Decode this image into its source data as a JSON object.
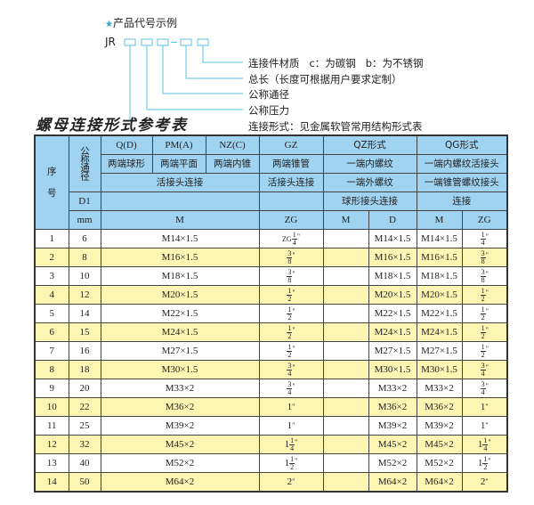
{
  "example": {
    "title": "产品代号示例",
    "icon": "star-icon",
    "code_prefix": "JR",
    "labels": [
      "连接件材质   c：为碳钢   b：为不锈钢",
      "总长（长度可根据用户要求定制）",
      "公称通径",
      "公称压力",
      "连接形式：见金属软管常用结构形式表"
    ],
    "line_color": "#5bc3e0"
  },
  "table_title": "螺母连接形式参考表",
  "colors": {
    "header_bg": "#9fd3f1",
    "alt_row_bg": "#fdf6b2"
  },
  "header": {
    "seq": "序\n\n号",
    "nominal_dia": "公称通径",
    "row1": [
      "Q(D)",
      "PM(A)",
      "NZ(C)",
      "GZ",
      "QZ形式",
      "QG形式"
    ],
    "row2": [
      "两端球形",
      "两端平面",
      "两端内锥",
      "两端锥管",
      "一端内螺纹",
      "一端内螺纹活接头"
    ],
    "row3": [
      "活接头连接",
      "活接头连接",
      "一端外螺纹",
      "一端锥管螺纹接头"
    ],
    "row4": [
      "D1",
      "",
      "",
      "球形接头连接",
      "连接"
    ],
    "row5": [
      "mm",
      "M",
      "ZG",
      "M",
      "D",
      "M",
      "ZG"
    ]
  },
  "rows": [
    {
      "no": "1",
      "dn": "6",
      "m": "M14×1.5",
      "zg": {
        "pre": "ZG",
        "whole": "",
        "n": "1",
        "d": "4"
      },
      "qz_m": "",
      "qz_d": "M14×1.5",
      "qg_m": "M14×1.5",
      "qg_zg": {
        "whole": "",
        "n": "1",
        "d": "4"
      }
    },
    {
      "no": "2",
      "dn": "8",
      "m": "M16×1.5",
      "zg": {
        "pre": "",
        "whole": "",
        "n": "3",
        "d": "8"
      },
      "qz_m": "",
      "qz_d": "M16×1.5",
      "qg_m": "M16×1.5",
      "qg_zg": {
        "whole": "",
        "n": "3",
        "d": "8"
      }
    },
    {
      "no": "3",
      "dn": "10",
      "m": "M18×1.5",
      "zg": {
        "pre": "",
        "whole": "",
        "n": "3",
        "d": "8"
      },
      "qz_m": "",
      "qz_d": "M18×1.5",
      "qg_m": "M18×1.5",
      "qg_zg": {
        "whole": "",
        "n": "3",
        "d": "8"
      }
    },
    {
      "no": "4",
      "dn": "12",
      "m": "M20×1.5",
      "zg": {
        "pre": "",
        "whole": "",
        "n": "1",
        "d": "2"
      },
      "qz_m": "",
      "qz_d": "M20×1.5",
      "qg_m": "M20×1.5",
      "qg_zg": {
        "whole": "",
        "n": "1",
        "d": "2"
      }
    },
    {
      "no": "5",
      "dn": "14",
      "m": "M22×1.5",
      "zg": {
        "pre": "",
        "whole": "",
        "n": "1",
        "d": "2"
      },
      "qz_m": "",
      "qz_d": "M22×1.5",
      "qg_m": "M22×1.5",
      "qg_zg": {
        "whole": "",
        "n": "1",
        "d": "2"
      }
    },
    {
      "no": "6",
      "dn": "15",
      "m": "M24×1.5",
      "zg": {
        "pre": "",
        "whole": "",
        "n": "1",
        "d": "2"
      },
      "qz_m": "",
      "qz_d": "M24×1.5",
      "qg_m": "M24×1.5",
      "qg_zg": {
        "whole": "",
        "n": "1",
        "d": "2"
      }
    },
    {
      "no": "7",
      "dn": "16",
      "m": "M27×1.5",
      "zg": {
        "pre": "",
        "whole": "",
        "n": "1",
        "d": "2"
      },
      "qz_m": "",
      "qz_d": "M27×1.5",
      "qg_m": "M27×1.5",
      "qg_zg": {
        "whole": "",
        "n": "1",
        "d": "2"
      }
    },
    {
      "no": "8",
      "dn": "18",
      "m": "M30×1.5",
      "zg": {
        "pre": "",
        "whole": "",
        "n": "3",
        "d": "4"
      },
      "qz_m": "",
      "qz_d": "M30×1.5",
      "qg_m": "M30×1.5",
      "qg_zg": {
        "whole": "",
        "n": "3",
        "d": "4"
      }
    },
    {
      "no": "9",
      "dn": "20",
      "m": "M33×2",
      "zg": {
        "pre": "",
        "whole": "",
        "n": "3",
        "d": "4"
      },
      "qz_m": "",
      "qz_d": "M33×2",
      "qg_m": "M33×2",
      "qg_zg": {
        "whole": "",
        "n": "3",
        "d": "4"
      }
    },
    {
      "no": "10",
      "dn": "22",
      "m": "M36×2",
      "zg": {
        "pre": "",
        "whole": "1",
        "n": "",
        "d": ""
      },
      "qz_m": "",
      "qz_d": "M36×2",
      "qg_m": "M36×2",
      "qg_zg": {
        "whole": "1",
        "n": "",
        "d": ""
      }
    },
    {
      "no": "11",
      "dn": "25",
      "m": "M39×2",
      "zg": {
        "pre": "",
        "whole": "1",
        "n": "",
        "d": ""
      },
      "qz_m": "",
      "qz_d": "M39×2",
      "qg_m": "M39×2",
      "qg_zg": {
        "whole": "1",
        "n": "",
        "d": ""
      }
    },
    {
      "no": "12",
      "dn": "32",
      "m": "M45×2",
      "zg": {
        "pre": "",
        "whole": "1",
        "n": "1",
        "d": "4"
      },
      "qz_m": "",
      "qz_d": "M45×2",
      "qg_m": "M45×2",
      "qg_zg": {
        "whole": "1",
        "n": "1",
        "d": "4"
      }
    },
    {
      "no": "13",
      "dn": "40",
      "m": "M52×2",
      "zg": {
        "pre": "",
        "whole": "1",
        "n": "1",
        "d": "2"
      },
      "qz_m": "",
      "qz_d": "M52×2",
      "qg_m": "M52×2",
      "qg_zg": {
        "whole": "1",
        "n": "1",
        "d": "2"
      }
    },
    {
      "no": "14",
      "dn": "50",
      "m": "M64×2",
      "zg": {
        "pre": "",
        "whole": "2",
        "n": "",
        "d": ""
      },
      "qz_m": "",
      "qz_d": "M64×2",
      "qg_m": "M64×2",
      "qg_zg": {
        "whole": "2",
        "n": "",
        "d": ""
      }
    }
  ],
  "inch_mark": "\""
}
